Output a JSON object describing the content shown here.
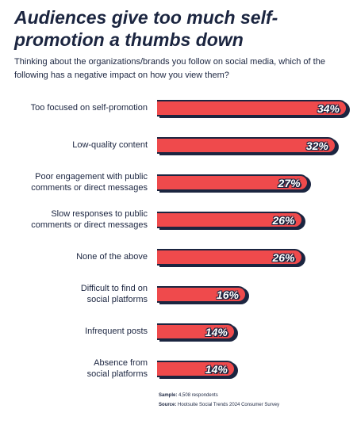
{
  "chart_data": {
    "type": "bar",
    "orientation": "horizontal",
    "title": "Audiences give too much self-promotion a thumbs down",
    "subtitle": "Thinking about the organizations/brands you follow on social media, which of the following has a negative impact on how you view them?",
    "categories": [
      "Too focused on self-promotion",
      "Low-quality content",
      "Poor engagement with public\ncomments or direct messages",
      "Slow responses to public\ncomments or direct messages",
      "None of the above",
      "Difficult to find on\nsocial platforms",
      "Infrequent posts",
      "Absence from\nsocial platforms"
    ],
    "values": [
      34,
      32,
      27,
      26,
      26,
      16,
      14,
      14
    ],
    "value_labels": [
      "34%",
      "32%",
      "27%",
      "26%",
      "26%",
      "16%",
      "14%",
      "14%"
    ],
    "color": "#ef4a4c",
    "footnotes": [
      {
        "label": "Sample:",
        "text": "4,508 respondents"
      },
      {
        "label": "Source:",
        "text": "Hootsuite Social Trends 2024 Consumer Survey"
      }
    ]
  }
}
